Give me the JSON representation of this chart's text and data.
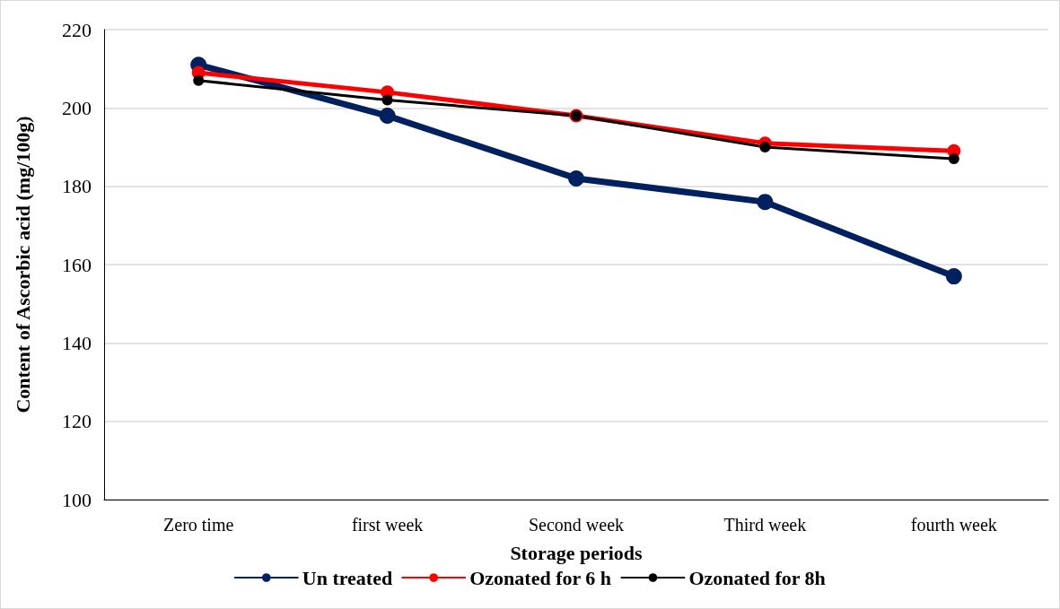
{
  "chart_data": {
    "type": "line",
    "xlabel": "Storage periods",
    "ylabel": "Content of Ascorbic acid (mg/100g)",
    "categories": [
      "Zero time",
      "first week",
      "Second week",
      "Third week",
      "fourth week"
    ],
    "series": [
      {
        "name": "Un treated",
        "color": "#002060",
        "values": [
          211,
          198,
          182,
          176,
          157
        ]
      },
      {
        "name": "Ozonated for 6 h",
        "color": "#ff0000",
        "values": [
          209,
          204,
          198,
          191,
          189
        ]
      },
      {
        "name": "Ozonated for 8h",
        "color": "#000000",
        "values": [
          207,
          202,
          198,
          190,
          187
        ]
      }
    ],
    "ylim": [
      100,
      220
    ],
    "yticks": [
      100,
      120,
      140,
      160,
      180,
      200,
      220
    ],
    "grid": "y",
    "legend": "bottom",
    "marker": "circle",
    "line_style": "solid"
  }
}
